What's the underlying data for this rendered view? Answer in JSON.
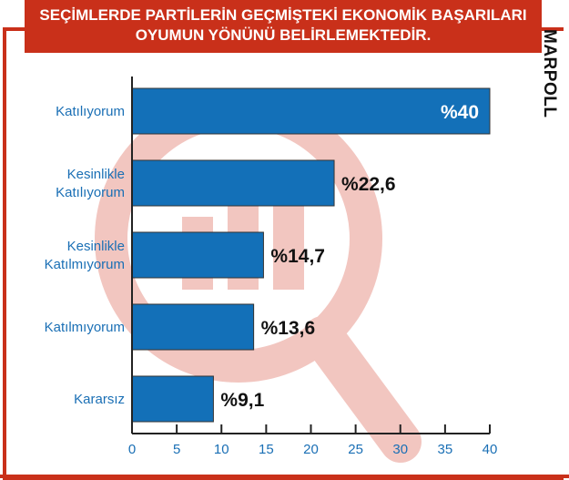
{
  "banner": {
    "line1": "SEÇİMLERDE PARTİLERİN GEÇMİŞTEKİ EKONOMİK BAŞARILARI",
    "line2": "OYUMUN YÖNÜNÜ BELİRLEMEKTEDİR."
  },
  "logo": "MARPOLL",
  "colors": {
    "bar": "#1370b8",
    "accent": "#c9301a",
    "axis_text": "#1a6fb5",
    "watermark": "#f2c6c0"
  },
  "chart_data": {
    "type": "bar",
    "orientation": "horizontal",
    "categories": [
      [
        "Katılıyorum"
      ],
      [
        "Kesinlikle",
        "Katılıyorum"
      ],
      [
        "Kesinlikle",
        "Katılmıyorum"
      ],
      [
        "Katılmıyorum"
      ],
      [
        "Kararsız"
      ]
    ],
    "values": [
      40,
      22.6,
      14.7,
      13.6,
      9.1
    ],
    "data_labels": [
      "%40",
      "%22,6",
      "%14,7",
      "%13,6",
      "%9,1"
    ],
    "xlim": [
      0,
      40
    ],
    "xticks": [
      "0",
      "5",
      "10",
      "15",
      "20",
      "25",
      "30",
      "35",
      "40"
    ],
    "grid": false
  }
}
